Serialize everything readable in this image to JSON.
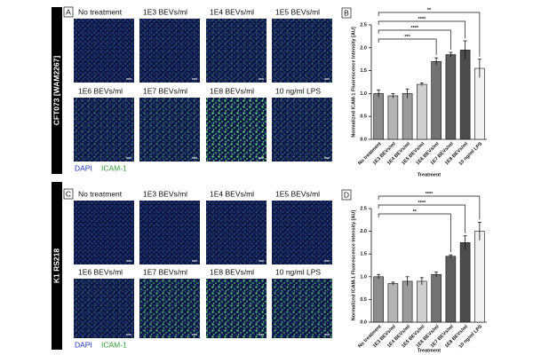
{
  "panels": [
    {
      "letter": "A",
      "strain": "CFT073 [WAM2267]",
      "images": [
        "No treatment",
        "1E3 BEVs/ml",
        "1E4 BEVs/ml",
        "1E5 BEVs/ml",
        "1E6 BEVs/ml",
        "1E7 BEVs/ml",
        "1E8 BEVs/ml",
        "10 ng/ml LPS"
      ],
      "legend": [
        "DAPI",
        "ICAM-1"
      ]
    },
    {
      "letter": "C",
      "strain": "K1 RS218",
      "images": [
        "No treatment",
        "1E3 BEVs/ml",
        "1E4 BEVs/ml",
        "1E5 BEVs/ml",
        "1E6 BEVs/ml",
        "1E7 BEVs/ml",
        "1E8 BEVs/ml",
        "10 ng/ml LPS"
      ],
      "legend": [
        "DAPI",
        "ICAM-1"
      ]
    }
  ],
  "chart_data": [
    {
      "type": "bar",
      "letter": "B",
      "ylabel": "Normalized ICAM-1 Fluorescence Intensity [AU]",
      "xlabel": "Treatment",
      "categories": [
        "No treatment",
        "1E3 BEVs/ml",
        "1E4 BEVs/ml",
        "1E5 BEVs/ml",
        "1E6 BEVs/ml",
        "1E7 BEVs/ml",
        "1E8 BEVs/ml",
        "10 ng/ml LPS"
      ],
      "values": [
        1.0,
        0.95,
        1.0,
        1.2,
        1.7,
        1.85,
        1.95,
        1.55
      ],
      "errors": [
        0.08,
        0.05,
        0.1,
        0.03,
        0.08,
        0.05,
        0.2,
        0.2
      ],
      "colors": [
        "#8c8c8c",
        "#b4b4b4",
        "#9c9c9c",
        "#cfcfcf",
        "#727272",
        "#5e5e5e",
        "#4c4c4c",
        "#f2f2f2"
      ],
      "ylim": [
        0,
        2.5
      ],
      "yticks": [
        {
          "value": 0,
          "label": "0.0"
        },
        0.5,
        {
          "value": 1,
          "label": "1.0"
        },
        1.5,
        {
          "value": 2,
          "label": "2.0"
        },
        2.5
      ],
      "annotations": [
        {
          "text": "**",
          "from": "No treatment",
          "to": "10 ng/ml LPS"
        },
        {
          "text": "****",
          "from": "No treatment",
          "to": "1E8 BEVs/ml"
        },
        {
          "text": "****",
          "from": "No treatment",
          "to": "1E7 BEVs/ml"
        },
        {
          "text": "***",
          "from": "No treatment",
          "to": "1E6 BEVs/ml"
        }
      ]
    },
    {
      "type": "bar",
      "letter": "D",
      "ylabel": "Normalized ICAM-1 Fluorescence Intensity [AU]",
      "xlabel": "Treatment",
      "categories": [
        "No treatment",
        "1E3 BEVs/ml",
        "1E4 BEVs/ml",
        "1E5 BEVs/ml",
        "1E6 BEVs/ml",
        "1E7 BEVs/ml",
        "1E8 BEVs/ml",
        "10 ng/ml LPS"
      ],
      "values": [
        1.0,
        0.85,
        0.9,
        0.9,
        1.05,
        1.45,
        1.75,
        2.0
      ],
      "errors": [
        0.05,
        0.03,
        0.1,
        0.08,
        0.05,
        0.03,
        0.15,
        0.2
      ],
      "colors": [
        "#8c8c8c",
        "#b4b4b4",
        "#9c9c9c",
        "#cfcfcf",
        "#727272",
        "#5e5e5e",
        "#4c4c4c",
        "#f2f2f2"
      ],
      "ylim": [
        0,
        2.5
      ],
      "yticks": [
        {
          "value": 0,
          "label": "0.0"
        },
        0.5,
        {
          "value": 1,
          "label": "1.0"
        },
        1.5,
        {
          "value": 2,
          "label": "2.0"
        },
        2.5
      ],
      "annotations": [
        {
          "text": "****",
          "from": "No treatment",
          "to": "10 ng/ml LPS"
        },
        {
          "text": "****",
          "from": "No treatment",
          "to": "1E8 BEVs/ml"
        },
        {
          "text": "**",
          "from": "No treatment",
          "to": "1E7 BEVs/ml"
        }
      ]
    }
  ]
}
